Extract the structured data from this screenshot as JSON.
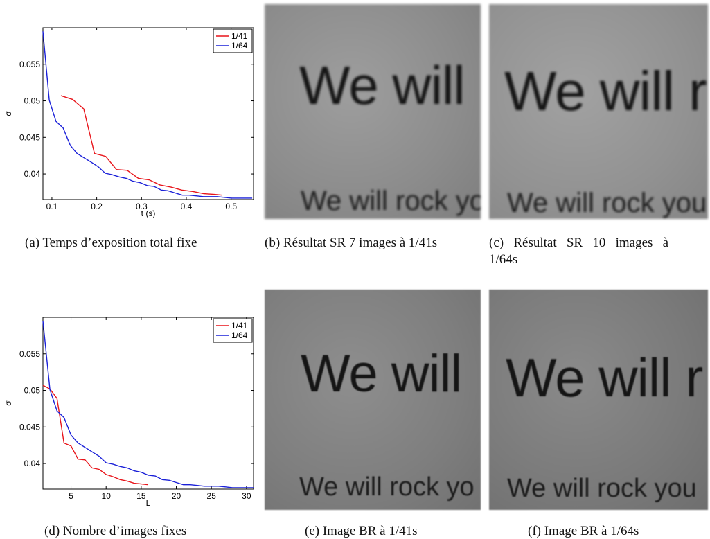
{
  "chart_data": [
    {
      "type": "line",
      "xlabel": "t (s)",
      "ylabel": "σ",
      "xlim": [
        0.08,
        0.55
      ],
      "ylim": [
        0.0365,
        0.06
      ],
      "xticks": [
        0.1,
        0.2,
        0.3,
        0.4,
        0.5
      ],
      "xtick_labels": [
        "0.1",
        "0.2",
        "0.3",
        "0.4",
        "0.5"
      ],
      "yticks": [
        0.04,
        0.045,
        0.05,
        0.055
      ],
      "ytick_labels": [
        "0.04",
        "0.045",
        "0.05",
        "0.055"
      ],
      "legend_position": "top-right",
      "series": [
        {
          "name": "1/41",
          "color": "#e8141a",
          "x": [
            0.12,
            0.146,
            0.171,
            0.195,
            0.22,
            0.244,
            0.268,
            0.293,
            0.317,
            0.341,
            0.366,
            0.39,
            0.415,
            0.439,
            0.463,
            0.48
          ],
          "y": [
            0.0507,
            0.0502,
            0.0489,
            0.0428,
            0.0424,
            0.0406,
            0.0405,
            0.0394,
            0.0392,
            0.0385,
            0.0382,
            0.0378,
            0.0376,
            0.0373,
            0.0372,
            0.0371
          ]
        },
        {
          "name": "1/64",
          "color": "#1a20d8",
          "x": [
            0.08,
            0.094,
            0.109,
            0.125,
            0.141,
            0.156,
            0.172,
            0.188,
            0.203,
            0.219,
            0.234,
            0.25,
            0.266,
            0.281,
            0.297,
            0.313,
            0.328,
            0.344,
            0.359,
            0.375,
            0.391,
            0.406,
            0.422,
            0.438,
            0.453,
            0.469,
            0.484,
            0.5,
            0.516,
            0.531,
            0.547
          ],
          "y": [
            0.0595,
            0.0501,
            0.0472,
            0.0463,
            0.0439,
            0.0428,
            0.0422,
            0.0416,
            0.041,
            0.0401,
            0.0399,
            0.0396,
            0.0394,
            0.039,
            0.0388,
            0.0384,
            0.0383,
            0.0378,
            0.0377,
            0.0374,
            0.0371,
            0.0371,
            0.037,
            0.0369,
            0.0369,
            0.0369,
            0.0368,
            0.0367,
            0.0367,
            0.0367,
            0.0367
          ]
        }
      ]
    },
    {
      "type": "line",
      "xlabel": "L",
      "ylabel": "σ",
      "xlim": [
        1,
        31
      ],
      "ylim": [
        0.0365,
        0.06
      ],
      "xticks": [
        5,
        10,
        15,
        20,
        25,
        30
      ],
      "xtick_labels": [
        "5",
        "10",
        "15",
        "20",
        "25",
        "30"
      ],
      "yticks": [
        0.04,
        0.045,
        0.05,
        0.055
      ],
      "ytick_labels": [
        "0.04",
        "0.045",
        "0.05",
        "0.055"
      ],
      "legend_position": "top-right",
      "series": [
        {
          "name": "1/41",
          "color": "#e8141a",
          "x": [
            1,
            2,
            3,
            4,
            5,
            6,
            7,
            8,
            9,
            10,
            11,
            12,
            13,
            14,
            15,
            16
          ],
          "y": [
            0.0507,
            0.0502,
            0.0489,
            0.0428,
            0.0424,
            0.0406,
            0.0405,
            0.0394,
            0.0392,
            0.0385,
            0.0382,
            0.0378,
            0.0376,
            0.0373,
            0.0372,
            0.0371
          ]
        },
        {
          "name": "1/64",
          "color": "#1a20d8",
          "x": [
            1,
            2,
            3,
            4,
            5,
            6,
            7,
            8,
            9,
            10,
            11,
            12,
            13,
            14,
            15,
            16,
            17,
            18,
            19,
            20,
            21,
            22,
            23,
            24,
            25,
            26,
            27,
            28,
            29,
            30,
            31
          ],
          "y": [
            0.0595,
            0.0501,
            0.0472,
            0.0463,
            0.0439,
            0.0428,
            0.0422,
            0.0416,
            0.041,
            0.0401,
            0.0399,
            0.0396,
            0.0394,
            0.039,
            0.0388,
            0.0384,
            0.0383,
            0.0378,
            0.0377,
            0.0374,
            0.0371,
            0.0371,
            0.037,
            0.0369,
            0.0369,
            0.0369,
            0.0368,
            0.0367,
            0.0367,
            0.0367,
            0.0367
          ]
        }
      ]
    }
  ],
  "images": {
    "b": {
      "line1": "We will",
      "line2": "We will rock yo"
    },
    "c": {
      "line1": "We will r",
      "line2": "We will rock you"
    },
    "e": {
      "line1": "We will",
      "line2": "We will rock yo"
    },
    "f": {
      "line1": "We will r",
      "line2": "We will rock you"
    }
  },
  "captions": {
    "a": "(a)  Temps d’exposition total fixe",
    "b": "(b)  Résultat SR 7 images à 1/41s",
    "c_line1": "(c)   Résultat   SR   10   images   à",
    "c_line2": "1/64s",
    "d": "(d)  Nombre d’images fixes",
    "e": "(e)  Image BR à 1/41s",
    "f": "(f)  Image BR à 1/64s"
  }
}
